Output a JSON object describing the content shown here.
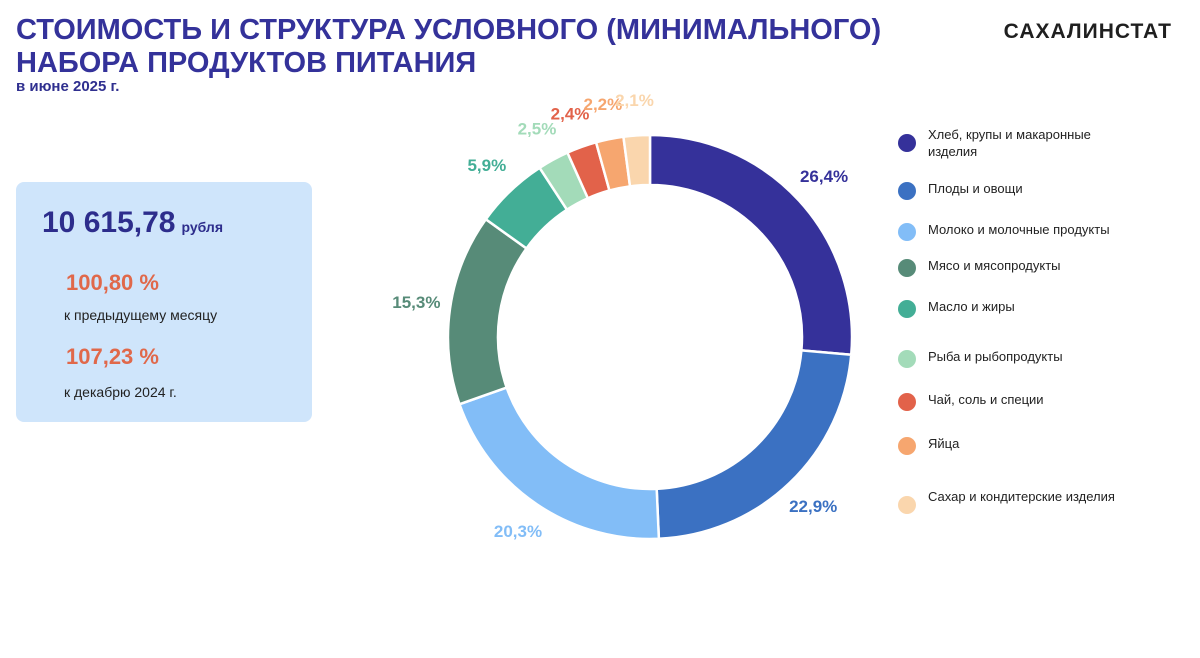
{
  "header": {
    "title": "СТОИМОСТЬ И СТРУКТУРА УСЛОВНОГО (МИНИМАЛЬНОГО) НАБОРА ПРОДУКТОВ ПИТАНИЯ",
    "subtitle": "в июне 2025 г.",
    "brand": "САХАЛИНСТАТ"
  },
  "summary": {
    "total_value": "10 615,78",
    "total_unit": "рубля",
    "index_prev_month": "100,80 %",
    "index_prev_month_caption": "к предыдущему месяцу",
    "index_dec": "107,23 %",
    "index_dec_caption": "к декабрю 2024 г."
  },
  "colors": {
    "title": "#34329a",
    "accent": "#e0684a",
    "card_bg": "#cfe5fb"
  },
  "chart_data": {
    "type": "pie",
    "donut": true,
    "legend_position": "right",
    "categories": [
      "Хлеб, крупы и макаронные изделия",
      "Плоды и овощи",
      "Молоко и молочные продукты",
      "Мясо и мясопродукты",
      "Масло и жиры",
      "Рыба и рыбопродукты",
      "Чай, соль и специи",
      "Яйца",
      "Сахар и кондитерские изделия"
    ],
    "values": [
      26.4,
      22.9,
      20.3,
      15.3,
      5.9,
      2.5,
      2.4,
      2.2,
      2.1
    ],
    "labels": [
      "26,4%",
      "22,9%",
      "20,3%",
      "15,3%",
      "5,9%",
      "2,5%",
      "2,4%",
      "2,2%",
      "2,1%"
    ],
    "colors": [
      "#35319a",
      "#3b71c2",
      "#82bdf7",
      "#578b78",
      "#43ae96",
      "#a3dbb9",
      "#e2624a",
      "#f6a66f",
      "#fad6ad"
    ]
  }
}
